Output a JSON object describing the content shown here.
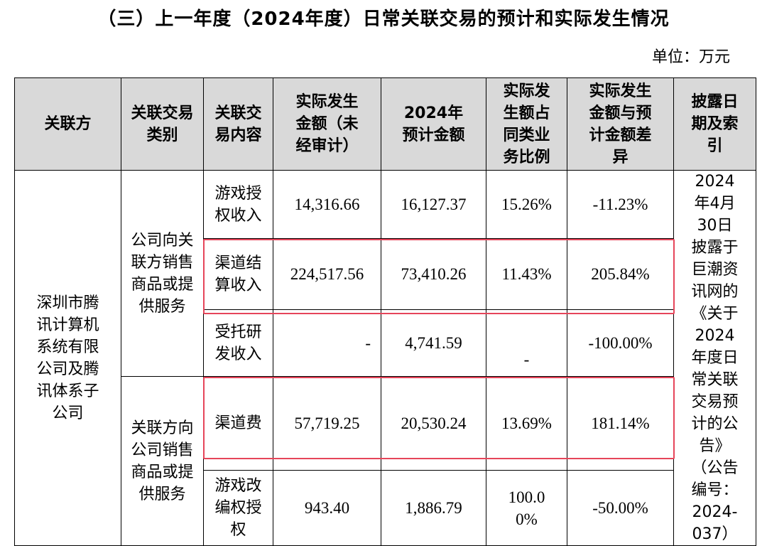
{
  "title": "（三）上一年度（2024年度）日常关联交易的预计和实际发生情况",
  "unit": "单位：万元",
  "headers": {
    "party": "关联方",
    "type": "关联交易类别",
    "content": "关联交易内容",
    "actual": "实际发生金额（未经审计）",
    "estimate": "2024年预计金额",
    "ratio": "实际发生额占同类业务比例",
    "diff": "实际发生金额与预计金额差异",
    "disclosure": "披露日期及索引"
  },
  "party": "深圳市腾讯计算机系统有限公司及腾讯体系子公司",
  "disclosure": "2024年4月30日披露于巨潮资讯网的《关于2024年度日常关联交易预计的公告》（公告编号：2024-037）",
  "groups": [
    {
      "type": "公司向关联方销售商品或提供服务",
      "rows": [
        {
          "content": "游戏授权收入",
          "actual": "14,316.66",
          "estimate": "16,127.37",
          "ratio": "15.26%",
          "diff": "-11.23%"
        },
        {
          "content": "渠道结算收入",
          "actual": "224,517.56",
          "estimate": "73,410.26",
          "ratio": "11.43%",
          "diff": "205.84%"
        },
        {
          "content": "受托研发收入",
          "actual": "-",
          "estimate": "4,741.59",
          "ratio": "-",
          "diff": "-100.00%"
        }
      ]
    },
    {
      "type": "关联方向公司销售商品或提供服务",
      "rows": [
        {
          "content": "渠道费",
          "actual": "57,719.25",
          "estimate": "20,530.24",
          "ratio": "13.69%",
          "diff": "181.14%"
        },
        {
          "content": "游戏改编权授权",
          "actual": "943.40",
          "estimate": "1,886.79",
          "ratio": "100.00%",
          "diff": "-50.00%"
        }
      ]
    }
  ]
}
